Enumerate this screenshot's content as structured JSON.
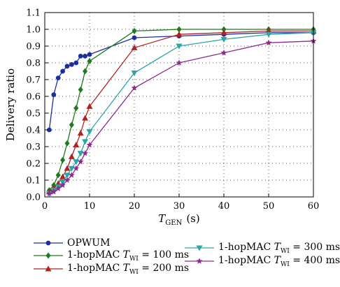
{
  "chart_data": {
    "type": "line",
    "xlabel": "T",
    "xlabel_sub": "GEN",
    "xlabel_unit": "(s)",
    "ylabel": "Delivery ratio",
    "xlim": [
      0,
      60
    ],
    "ylim": [
      0,
      1.1
    ],
    "xticks": [
      0,
      10,
      20,
      30,
      40,
      50,
      60
    ],
    "yticks": [
      0.0,
      0.1,
      0.2,
      0.3,
      0.4,
      0.5,
      0.6,
      0.7,
      0.8,
      0.9,
      1.0,
      1.1
    ],
    "grid": true,
    "legend_position": "bottom",
    "series": [
      {
        "name": "OPWUM",
        "color": "#1a2f9e",
        "marker": "circle",
        "x": [
          1,
          2,
          3,
          4,
          5,
          6,
          7,
          8,
          9,
          10,
          20,
          30,
          40,
          50,
          60
        ],
        "y": [
          0.4,
          0.61,
          0.71,
          0.75,
          0.78,
          0.79,
          0.8,
          0.84,
          0.84,
          0.85,
          0.95,
          0.96,
          0.97,
          0.98,
          0.98
        ]
      },
      {
        "name": "1-hopMAC T",
        "name_sub": "WI",
        "name_suffix": " = 100 ms",
        "color": "#1e7a1e",
        "marker": "diamond",
        "x": [
          1,
          2,
          3,
          4,
          5,
          6,
          7,
          8,
          9,
          10,
          20,
          30,
          40,
          50,
          60
        ],
        "y": [
          0.04,
          0.07,
          0.13,
          0.22,
          0.32,
          0.43,
          0.53,
          0.64,
          0.75,
          0.81,
          0.99,
          1.0,
          1.0,
          1.0,
          1.0
        ]
      },
      {
        "name": "1-hopMAC T",
        "name_sub": "WI",
        "name_suffix": " = 200 ms",
        "color": "#b22222",
        "marker": "triangle-up",
        "x": [
          1,
          2,
          3,
          4,
          5,
          6,
          7,
          8,
          9,
          10,
          20,
          30,
          40,
          50,
          60
        ],
        "y": [
          0.03,
          0.05,
          0.08,
          0.12,
          0.17,
          0.24,
          0.31,
          0.38,
          0.47,
          0.54,
          0.89,
          0.97,
          0.98,
          0.99,
          0.99
        ]
      },
      {
        "name": "1-hopMAC T",
        "name_sub": "WI",
        "name_suffix": " = 300 ms",
        "color": "#2aa6a6",
        "marker": "triangle-down",
        "x": [
          1,
          2,
          3,
          4,
          5,
          6,
          7,
          8,
          9,
          10,
          20,
          30,
          40,
          50,
          60
        ],
        "y": [
          0.02,
          0.04,
          0.06,
          0.09,
          0.13,
          0.17,
          0.21,
          0.26,
          0.33,
          0.39,
          0.74,
          0.9,
          0.94,
          0.97,
          0.98
        ]
      },
      {
        "name": "1-hopMAC T",
        "name_sub": "WI",
        "name_suffix": " = 400 ms",
        "color": "#8e2a8e",
        "marker": "star",
        "x": [
          1,
          2,
          3,
          4,
          5,
          6,
          7,
          8,
          9,
          10,
          20,
          30,
          40,
          50,
          60
        ],
        "y": [
          0.02,
          0.03,
          0.05,
          0.07,
          0.1,
          0.13,
          0.17,
          0.21,
          0.26,
          0.31,
          0.65,
          0.8,
          0.86,
          0.92,
          0.93
        ]
      }
    ]
  }
}
